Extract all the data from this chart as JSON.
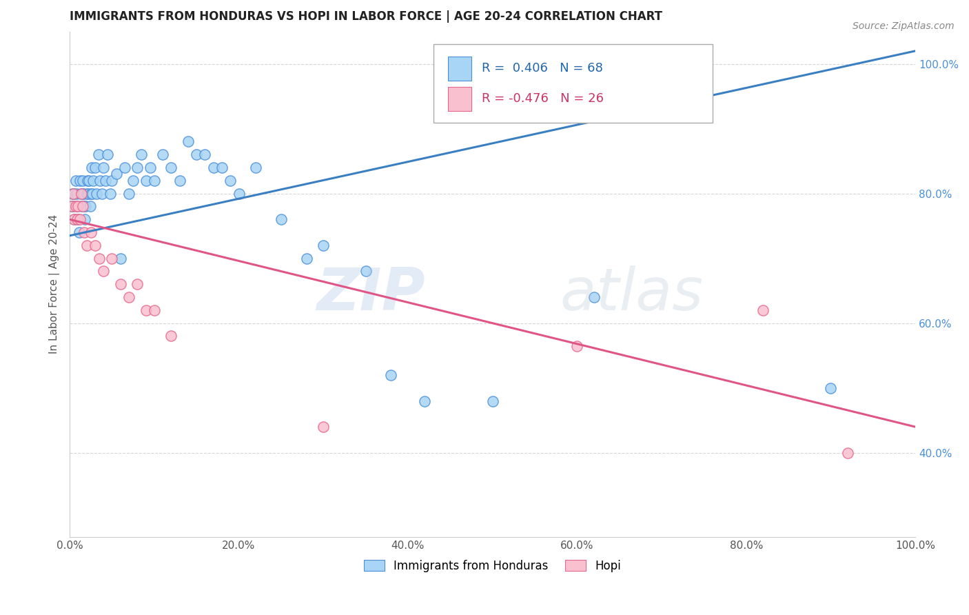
{
  "title": "IMMIGRANTS FROM HONDURAS VS HOPI IN LABOR FORCE | AGE 20-24 CORRELATION CHART",
  "source": "Source: ZipAtlas.com",
  "ylabel": "In Labor Force | Age 20-24",
  "xlim": [
    0.0,
    1.0
  ],
  "ylim": [
    0.27,
    1.05
  ],
  "xticks": [
    0.0,
    0.2,
    0.4,
    0.6,
    0.8,
    1.0
  ],
  "xticklabels": [
    "0.0%",
    "20.0%",
    "40.0%",
    "60.0%",
    "80.0%",
    "100.0%"
  ],
  "yticks": [
    0.4,
    0.6,
    0.8,
    1.0
  ],
  "yticklabels": [
    "40.0%",
    "60.0%",
    "80.0%",
    "100.0%"
  ],
  "blue_R": 0.406,
  "blue_N": 68,
  "pink_R": -0.476,
  "pink_N": 26,
  "blue_color": "#A8D4F5",
  "pink_color": "#F9C0D0",
  "blue_edge_color": "#4A90D9",
  "pink_edge_color": "#E8668A",
  "blue_line_color": "#3A7FC1",
  "pink_line_color": "#E05585",
  "legend_label_blue": "Immigrants from Honduras",
  "legend_label_pink": "Hopi",
  "blue_scatter_x": [
    0.002,
    0.003,
    0.004,
    0.005,
    0.006,
    0.007,
    0.008,
    0.009,
    0.01,
    0.011,
    0.012,
    0.013,
    0.014,
    0.015,
    0.015,
    0.016,
    0.017,
    0.018,
    0.019,
    0.02,
    0.021,
    0.022,
    0.023,
    0.024,
    0.025,
    0.026,
    0.027,
    0.028,
    0.03,
    0.032,
    0.034,
    0.036,
    0.038,
    0.04,
    0.042,
    0.045,
    0.048,
    0.05,
    0.055,
    0.06,
    0.065,
    0.07,
    0.075,
    0.08,
    0.085,
    0.09,
    0.095,
    0.1,
    0.11,
    0.12,
    0.13,
    0.14,
    0.15,
    0.16,
    0.17,
    0.18,
    0.19,
    0.2,
    0.22,
    0.25,
    0.28,
    0.3,
    0.35,
    0.38,
    0.42,
    0.5,
    0.62,
    0.9
  ],
  "blue_scatter_y": [
    0.78,
    0.8,
    0.78,
    0.8,
    0.76,
    0.82,
    0.8,
    0.78,
    0.76,
    0.74,
    0.82,
    0.8,
    0.78,
    0.8,
    0.82,
    0.8,
    0.78,
    0.76,
    0.78,
    0.8,
    0.82,
    0.8,
    0.82,
    0.78,
    0.8,
    0.84,
    0.8,
    0.82,
    0.84,
    0.8,
    0.86,
    0.82,
    0.8,
    0.84,
    0.82,
    0.86,
    0.8,
    0.82,
    0.83,
    0.7,
    0.84,
    0.8,
    0.82,
    0.84,
    0.86,
    0.82,
    0.84,
    0.82,
    0.86,
    0.84,
    0.82,
    0.88,
    0.86,
    0.86,
    0.84,
    0.84,
    0.82,
    0.8,
    0.84,
    0.76,
    0.7,
    0.72,
    0.68,
    0.52,
    0.48,
    0.48,
    0.64,
    0.5
  ],
  "pink_scatter_x": [
    0.002,
    0.004,
    0.005,
    0.007,
    0.009,
    0.01,
    0.012,
    0.014,
    0.015,
    0.017,
    0.02,
    0.025,
    0.03,
    0.035,
    0.04,
    0.05,
    0.06,
    0.07,
    0.08,
    0.09,
    0.1,
    0.12,
    0.3,
    0.6,
    0.82,
    0.92
  ],
  "pink_scatter_y": [
    0.78,
    0.8,
    0.76,
    0.78,
    0.76,
    0.78,
    0.76,
    0.8,
    0.78,
    0.74,
    0.72,
    0.74,
    0.72,
    0.7,
    0.68,
    0.7,
    0.66,
    0.64,
    0.66,
    0.62,
    0.62,
    0.58,
    0.44,
    0.565,
    0.62,
    0.4
  ],
  "blue_trendline_x": [
    0.0,
    1.0
  ],
  "blue_trendline_y": [
    0.735,
    1.02
  ],
  "pink_trendline_x": [
    0.0,
    1.0
  ],
  "pink_trendline_y": [
    0.76,
    0.44
  ]
}
